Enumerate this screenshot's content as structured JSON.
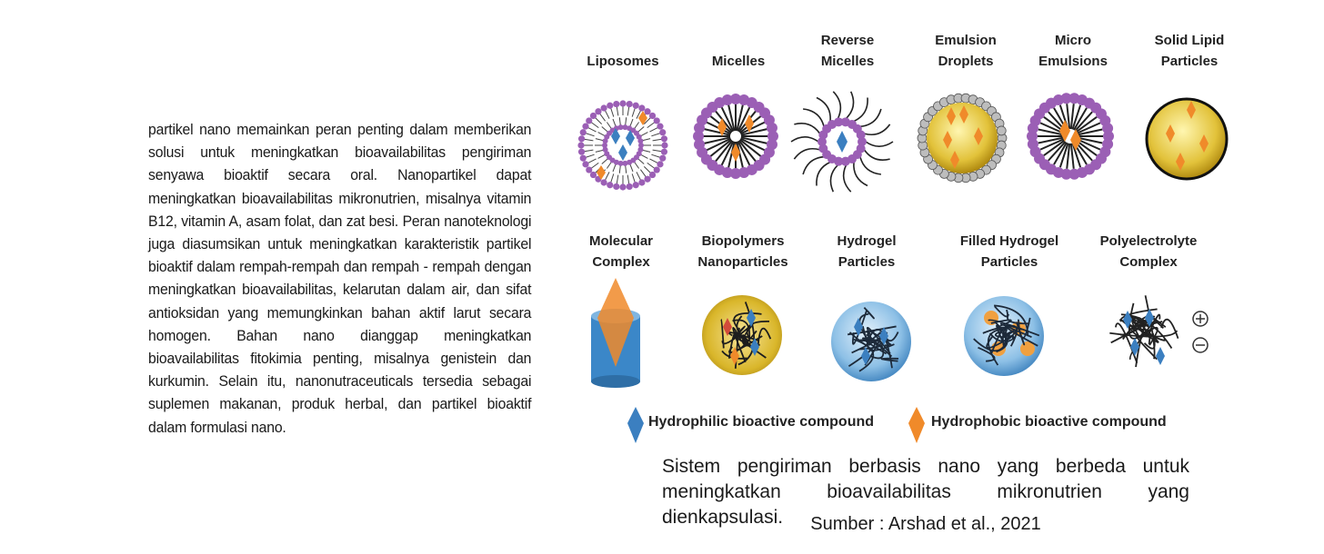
{
  "paragraph": "partikel nano memainkan peran penting dalam memberikan solusi untuk meningkatkan bioavailabilitas pengiriman senyawa bioaktif secara oral. Nanopartikel dapat meningkatkan bioavailabilitas mikronutrien, misalnya vitamin B12, vitamin A, asam folat, dan zat besi. Peran nanoteknologi juga diasumsikan untuk meningkatkan karakteristik partikel bioaktif dalam rempah-rempah dan rempah - rempah dengan meningkatkan bioavailabilitas, kelarutan dalam air, dan sifat antioksidan yang memungkinkan bahan aktif larut secara homogen. Bahan nano dianggap meningkatkan bioavailabilitas fitokimia penting, misalnya genistein dan kurkumin. Selain itu, nanonutraceuticals tersedia sebagai suplemen makanan, produk herbal, dan partikel bioaktif dalam formulasi nano.",
  "figure": {
    "row1": [
      "Liposomes",
      "Micelles",
      "Reverse\nMicelles",
      "Emulsion\nDroplets",
      "Micro\nEmulsions",
      "Solid Lipid\nParticles"
    ],
    "row2": [
      "Molecular\nComplex",
      "Biopolymers\nNanoparticles",
      "Hydrogel\nParticles",
      "Filled Hydrogel\nParticles",
      "Polyelectrolyte\nComplex"
    ],
    "legend": {
      "hydrophilic": "Hydrophilic bioactive compound",
      "hydrophobic": "Hydrophobic bioactive compound"
    },
    "colors": {
      "hydrophilic": "#3b7fc0",
      "hydrophobic": "#f08a2a",
      "headgroup": "#9b5fb5",
      "droplet": "#d9b62a",
      "hydrogel": "#6aa8d8"
    }
  },
  "caption": "Sistem pengiriman berbasis nano yang berbeda untuk meningkatkan bioavailabilitas mikronutrien yang dienkapsulasi.",
  "source": "Sumber : Arshad et al., 2021"
}
